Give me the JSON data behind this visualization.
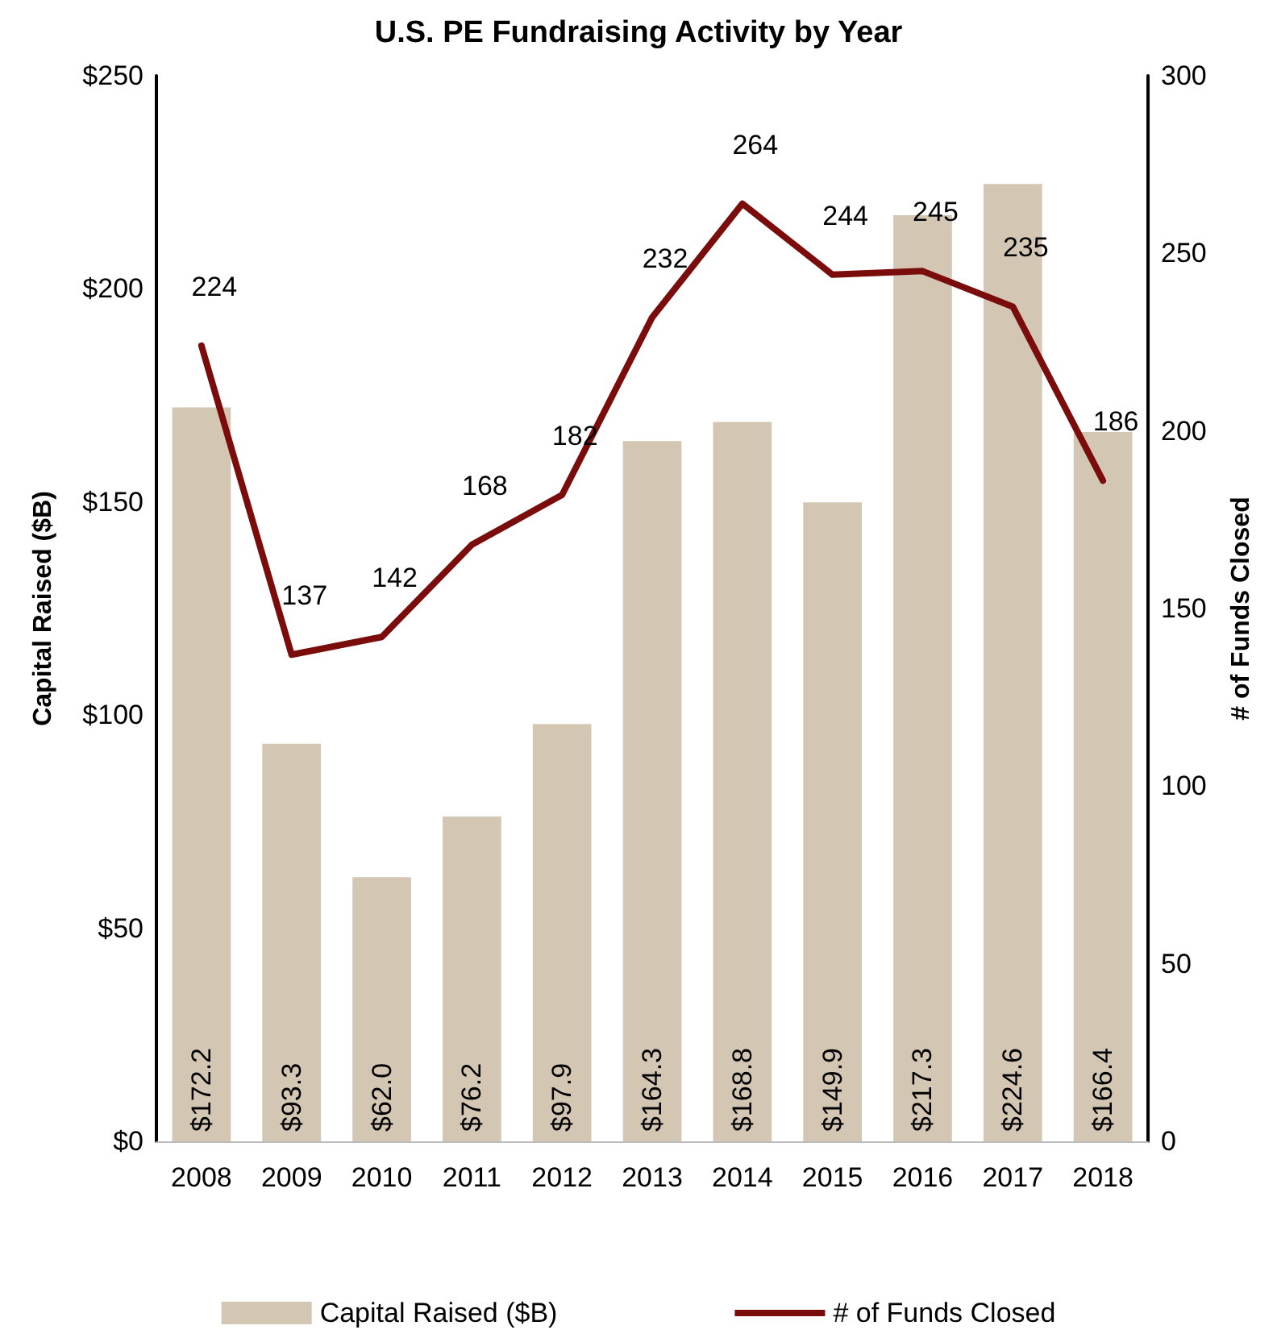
{
  "chart_data": {
    "type": "bar",
    "title": "U.S. PE Fundraising Activity by Year",
    "ylabel": "Capital Raised ($B)",
    "y2label": "# of Funds Closed",
    "categories": [
      "2008",
      "2009",
      "2010",
      "2011",
      "2012",
      "2013",
      "2014",
      "2015",
      "2016",
      "2017",
      "2018"
    ],
    "series": [
      {
        "name": "Capital Raised ($B)",
        "color": "#d3c7b4",
        "values": [
          172.2,
          93.3,
          62.0,
          76.2,
          97.9,
          164.3,
          168.8,
          149.9,
          217.3,
          224.6,
          166.4
        ],
        "value_labels": [
          "$172.2",
          "$93.3",
          "$62.0",
          "$76.2",
          "$97.9",
          "$164.3",
          "$168.8",
          "$149.9",
          "$217.3",
          "$224.6",
          "$166.4"
        ]
      },
      {
        "name": "# of Funds Closed",
        "type": "line",
        "axis": "y2",
        "color": "#7b0c0c",
        "values": [
          224,
          137,
          142,
          168,
          182,
          232,
          264,
          244,
          245,
          235,
          186
        ],
        "value_labels": [
          "224",
          "137",
          "142",
          "168",
          "182",
          "232",
          "264",
          "244",
          "245",
          "235",
          "186"
        ]
      }
    ],
    "ylim": [
      0,
      250
    ],
    "yticks": [
      {
        "value": 0,
        "label": "$0"
      },
      {
        "value": 50,
        "label": "$50"
      },
      {
        "value": 100,
        "label": "$100"
      },
      {
        "value": 150,
        "label": "$150"
      },
      {
        "value": 200,
        "label": "$200"
      },
      {
        "value": 250,
        "label": "$250"
      }
    ],
    "y2lim": [
      0,
      300
    ],
    "y2ticks": [
      0,
      50,
      100,
      150,
      200,
      250,
      300
    ],
    "grid": false,
    "legend": "bottom",
    "marker": "none",
    "line_style": "solid"
  }
}
